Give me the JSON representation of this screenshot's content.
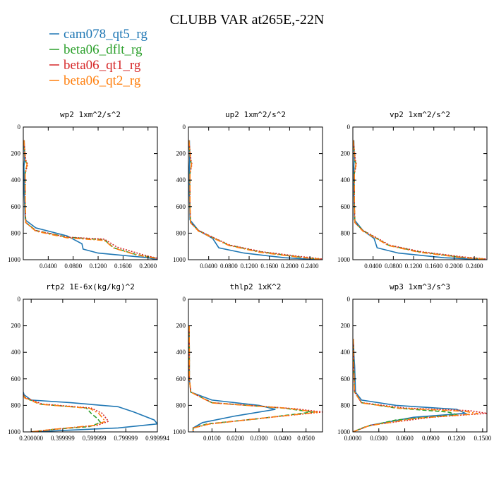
{
  "figure": {
    "title": "CLUBB VAR at265E,-22N"
  },
  "legend": [
    {
      "name": "cam078_qt5_rg",
      "color": "#1f77b4",
      "dash": "solid"
    },
    {
      "name": "beta06_dflt_rg",
      "color": "#2ca02c",
      "dash": "dashed"
    },
    {
      "name": "beta06_qt1_rg",
      "color": "#d62728",
      "dash": "dotted"
    },
    {
      "name": "beta06_qt2_rg",
      "color": "#ff7f0e",
      "dash": "dashdot"
    }
  ],
  "chart_data": [
    {
      "type": "line",
      "title": "wp2  1xm^2/s^2",
      "xlim": [
        0,
        0.215
      ],
      "ylim": [
        1000,
        0
      ],
      "xticks": [
        "0.0400",
        "0.0800",
        "0.1200",
        "0.1600",
        "0.2000"
      ],
      "xtick_values": [
        0.04,
        0.08,
        0.12,
        0.16,
        0.2
      ],
      "yticks": [
        "0",
        "200",
        "400",
        "600",
        "800",
        "1000"
      ],
      "ytick_values": [
        0,
        200,
        400,
        600,
        800,
        1000
      ],
      "series": [
        {
          "name": "cam078_qt5_rg",
          "x": [
            0.0015,
            0.002,
            0.001,
            0.0015,
            0.0015,
            0.003,
            0.02,
            0.07,
            0.094,
            0.096,
            0.12,
            0.2,
            0.215
          ],
          "y": [
            100,
            250,
            300,
            400,
            500,
            700,
            760,
            820,
            880,
            920,
            950,
            985,
            1000
          ]
        },
        {
          "name": "beta06_dflt_rg",
          "x": [
            0.001,
            0.003,
            0.006,
            0.003,
            0.003,
            0.004,
            0.02,
            0.07,
            0.13,
            0.145,
            0.18,
            0.215
          ],
          "y": [
            100,
            250,
            280,
            350,
            600,
            720,
            780,
            830,
            850,
            910,
            960,
            990
          ]
        },
        {
          "name": "beta06_qt1_rg",
          "x": [
            0.001,
            0.004,
            0.007,
            0.003,
            0.003,
            0.004,
            0.02,
            0.07,
            0.13,
            0.15,
            0.19,
            0.215
          ],
          "y": [
            100,
            250,
            280,
            350,
            600,
            720,
            780,
            830,
            845,
            905,
            960,
            990
          ]
        },
        {
          "name": "beta06_qt2_rg",
          "x": [
            0.001,
            0.003,
            0.006,
            0.003,
            0.003,
            0.004,
            0.02,
            0.07,
            0.13,
            0.145,
            0.18,
            0.215
          ],
          "y": [
            100,
            250,
            280,
            350,
            600,
            720,
            785,
            835,
            855,
            912,
            962,
            992
          ]
        }
      ]
    },
    {
      "type": "line",
      "title": "up2  1xm^2/s^2",
      "xlim": [
        0,
        0.265
      ],
      "ylim": [
        1000,
        0
      ],
      "xticks": [
        "0.0400",
        "0.0800",
        "0.1200",
        "0.1600",
        "0.2000",
        "0.2400"
      ],
      "xtick_values": [
        0.04,
        0.08,
        0.12,
        0.16,
        0.2,
        0.24
      ],
      "yticks": [
        "0",
        "200",
        "400",
        "600",
        "800",
        "1000"
      ],
      "ytick_values": [
        0,
        200,
        400,
        600,
        800,
        1000
      ],
      "series": [
        {
          "name": "cam078_qt5_rg",
          "x": [
            0.002,
            0.0025,
            0.002,
            0.002,
            0.002,
            0.003,
            0.02,
            0.048,
            0.06,
            0.11,
            0.19,
            0.26
          ],
          "y": [
            100,
            250,
            300,
            400,
            500,
            700,
            780,
            840,
            910,
            950,
            985,
            1000
          ]
        },
        {
          "name": "beta06_dflt_rg",
          "x": [
            0.001,
            0.004,
            0.006,
            0.003,
            0.003,
            0.004,
            0.02,
            0.055,
            0.08,
            0.14,
            0.22,
            0.26
          ],
          "y": [
            100,
            250,
            280,
            350,
            600,
            720,
            780,
            845,
            890,
            940,
            980,
            995
          ]
        },
        {
          "name": "beta06_qt1_rg",
          "x": [
            0.001,
            0.005,
            0.007,
            0.003,
            0.003,
            0.004,
            0.02,
            0.056,
            0.082,
            0.145,
            0.23,
            0.265
          ],
          "y": [
            100,
            250,
            280,
            350,
            600,
            720,
            780,
            845,
            890,
            940,
            980,
            995
          ]
        },
        {
          "name": "beta06_qt2_rg",
          "x": [
            0.001,
            0.004,
            0.006,
            0.003,
            0.003,
            0.004,
            0.02,
            0.055,
            0.08,
            0.14,
            0.22,
            0.26
          ],
          "y": [
            100,
            250,
            280,
            350,
            600,
            720,
            785,
            848,
            893,
            943,
            982,
            997
          ]
        }
      ]
    },
    {
      "type": "line",
      "title": "vp2  1xm^2/s^2",
      "xlim": [
        0,
        0.265
      ],
      "ylim": [
        1000,
        0
      ],
      "xticks": [
        "0.0400",
        "0.0800",
        "0.1200",
        "0.1600",
        "0.2000",
        "0.2400"
      ],
      "xtick_values": [
        0.04,
        0.08,
        0.12,
        0.16,
        0.2,
        0.24
      ],
      "yticks": [
        "0",
        "200",
        "400",
        "600",
        "800",
        "1000"
      ],
      "ytick_values": [
        0,
        200,
        400,
        600,
        800,
        1000
      ],
      "series": [
        {
          "name": "cam078_qt5_rg",
          "x": [
            0.002,
            0.0025,
            0.002,
            0.002,
            0.002,
            0.003,
            0.02,
            0.042,
            0.048,
            0.09,
            0.18,
            0.26
          ],
          "y": [
            100,
            250,
            300,
            400,
            500,
            700,
            780,
            840,
            910,
            950,
            985,
            1000
          ]
        },
        {
          "name": "beta06_dflt_rg",
          "x": [
            0.001,
            0.004,
            0.006,
            0.003,
            0.003,
            0.004,
            0.02,
            0.05,
            0.07,
            0.13,
            0.21,
            0.26
          ],
          "y": [
            100,
            250,
            280,
            350,
            600,
            720,
            780,
            845,
            890,
            940,
            980,
            995
          ]
        },
        {
          "name": "beta06_qt1_rg",
          "x": [
            0.001,
            0.005,
            0.007,
            0.003,
            0.003,
            0.004,
            0.02,
            0.052,
            0.072,
            0.135,
            0.22,
            0.265
          ],
          "y": [
            100,
            250,
            280,
            350,
            600,
            720,
            780,
            845,
            890,
            940,
            980,
            995
          ]
        },
        {
          "name": "beta06_qt2_rg",
          "x": [
            0.001,
            0.004,
            0.006,
            0.003,
            0.003,
            0.004,
            0.02,
            0.05,
            0.07,
            0.13,
            0.21,
            0.26
          ],
          "y": [
            100,
            250,
            280,
            350,
            600,
            720,
            785,
            848,
            893,
            943,
            982,
            997
          ]
        }
      ]
    },
    {
      "type": "line",
      "title": "rtp2  1E-6x(kg/kg)^2",
      "xlim": [
        0.15,
        1.0
      ],
      "ylim": [
        1000,
        0
      ],
      "xticks": [
        "0.200000",
        "0.399999",
        "0.599999",
        "0.799999",
        "0.999994"
      ],
      "xtick_values": [
        0.2,
        0.399999,
        0.599999,
        0.799999,
        0.999994
      ],
      "yticks": [
        "0",
        "200",
        "400",
        "600",
        "800",
        "1000"
      ],
      "ytick_values": [
        0,
        200,
        400,
        600,
        800,
        1000
      ],
      "series": [
        {
          "name": "cam078_qt5_rg",
          "x": [
            0.15,
            0.155,
            0.2,
            0.45,
            0.75,
            0.85,
            0.98,
            1.0,
            0.75,
            0.2
          ],
          "y": [
            700,
            720,
            760,
            780,
            810,
            850,
            910,
            940,
            970,
            1000
          ]
        },
        {
          "name": "beta06_dflt_rg",
          "x": [
            0.15,
            0.16,
            0.25,
            0.55,
            0.58,
            0.62,
            0.64,
            0.57,
            0.35,
            0.2
          ],
          "y": [
            720,
            740,
            790,
            820,
            860,
            900,
            930,
            960,
            980,
            1000
          ]
        },
        {
          "name": "beta06_qt1_rg",
          "x": [
            0.15,
            0.16,
            0.27,
            0.58,
            0.65,
            0.69,
            0.62,
            0.35,
            0.2
          ],
          "y": [
            720,
            740,
            790,
            820,
            860,
            920,
            950,
            980,
            1000
          ]
        },
        {
          "name": "beta06_qt2_rg",
          "x": [
            0.15,
            0.16,
            0.26,
            0.57,
            0.63,
            0.67,
            0.6,
            0.34,
            0.2
          ],
          "y": [
            725,
            745,
            792,
            822,
            862,
            921,
            951,
            981,
            1000
          ]
        }
      ]
    },
    {
      "type": "line",
      "title": "thlp2  1xK^2",
      "xlim": [
        0,
        0.057
      ],
      "ylim": [
        1000,
        0
      ],
      "xticks": [
        "0.0100",
        "0.0200",
        "0.0300",
        "0.0400",
        "0.0500"
      ],
      "xtick_values": [
        0.01,
        0.02,
        0.03,
        0.04,
        0.05
      ],
      "yticks": [
        "0",
        "200",
        "400",
        "600",
        "800",
        "1000"
      ],
      "ytick_values": [
        0,
        200,
        400,
        600,
        800,
        1000
      ],
      "series": [
        {
          "name": "cam078_qt5_rg",
          "x": [
            0.0003,
            0.0004,
            0.0004,
            0.001,
            0.01,
            0.03,
            0.037,
            0.02,
            0.006,
            0.002,
            0.002
          ],
          "y": [
            200,
            400,
            600,
            700,
            760,
            800,
            830,
            880,
            930,
            970,
            1000
          ]
        },
        {
          "name": "beta06_dflt_rg",
          "x": [
            0.0003,
            0.0004,
            0.0004,
            0.001,
            0.01,
            0.04,
            0.053,
            0.03,
            0.008,
            0.002,
            0.002
          ],
          "y": [
            200,
            400,
            600,
            700,
            780,
            820,
            850,
            900,
            940,
            970,
            1000
          ]
        },
        {
          "name": "beta06_qt1_rg",
          "x": [
            0.0003,
            0.0004,
            0.0004,
            0.001,
            0.01,
            0.045,
            0.057,
            0.035,
            0.009,
            0.002,
            0.002
          ],
          "y": [
            200,
            400,
            600,
            700,
            780,
            825,
            850,
            890,
            940,
            970,
            1000
          ]
        },
        {
          "name": "beta06_qt2_rg",
          "x": [
            0.0003,
            0.0004,
            0.0004,
            0.001,
            0.01,
            0.042,
            0.055,
            0.032,
            0.0085,
            0.002,
            0.002
          ],
          "y": [
            200,
            400,
            600,
            700,
            782,
            822,
            852,
            895,
            942,
            972,
            1000
          ]
        }
      ]
    },
    {
      "type": "line",
      "title": "wp3  1xm^3/s^3",
      "xlim": [
        0,
        0.155
      ],
      "ylim": [
        1000,
        0
      ],
      "xticks": [
        "0.0000",
        "0.0300",
        "0.0600",
        "0.0900",
        "0.1200",
        "0.1500"
      ],
      "xtick_values": [
        0.0,
        0.03,
        0.06,
        0.09,
        0.12,
        0.15
      ],
      "yticks": [
        "0",
        "200",
        "400",
        "600",
        "800",
        "1000"
      ],
      "ytick_values": [
        0,
        200,
        400,
        600,
        800,
        1000
      ],
      "series": [
        {
          "name": "cam078_qt5_rg",
          "x": [
            0.0005,
            0.0015,
            0.002,
            0.003,
            0.01,
            0.05,
            0.12,
            0.13,
            0.07,
            0.02,
            0.0
          ],
          "y": [
            300,
            450,
            500,
            700,
            760,
            800,
            830,
            860,
            890,
            950,
            1000
          ]
        },
        {
          "name": "beta06_dflt_rg",
          "x": [
            0.0005,
            0.001,
            0.001,
            0.002,
            0.01,
            0.05,
            0.11,
            0.12,
            0.05,
            0.015,
            0.0
          ],
          "y": [
            300,
            450,
            500,
            700,
            780,
            820,
            850,
            870,
            910,
            960,
            1000
          ]
        },
        {
          "name": "beta06_qt1_rg",
          "x": [
            0.0005,
            0.001,
            0.001,
            0.002,
            0.01,
            0.06,
            0.135,
            0.155,
            0.09,
            0.02,
            0.0
          ],
          "y": [
            300,
            450,
            500,
            700,
            780,
            820,
            840,
            860,
            890,
            950,
            1000
          ]
        },
        {
          "name": "beta06_qt2_rg",
          "x": [
            0.0005,
            0.001,
            0.001,
            0.002,
            0.01,
            0.055,
            0.13,
            0.145,
            0.07,
            0.018,
            0.0
          ],
          "y": [
            300,
            450,
            500,
            700,
            782,
            822,
            845,
            862,
            900,
            955,
            1000
          ]
        }
      ]
    }
  ]
}
